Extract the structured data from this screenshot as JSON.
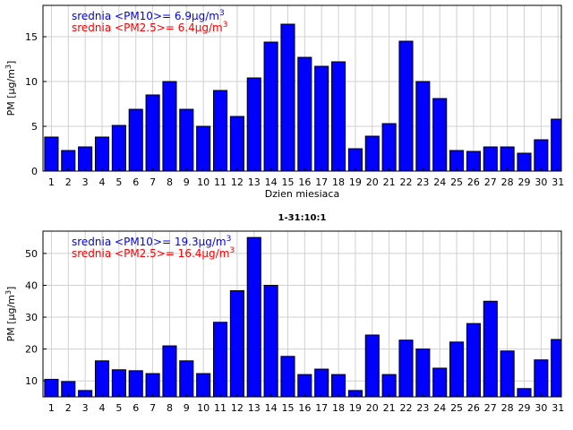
{
  "chart_data": [
    {
      "type": "bar",
      "title": "",
      "xlabel": "Dzien miesiaca",
      "ylabel": "PM [μg/m³]",
      "ylabel_base": "PM [μg/m",
      "ylabel_sup": "3",
      "ylabel_end": "]",
      "categories": [
        "1",
        "2",
        "3",
        "4",
        "5",
        "6",
        "7",
        "8",
        "9",
        "10",
        "11",
        "12",
        "13",
        "14",
        "15",
        "16",
        "17",
        "18",
        "19",
        "20",
        "21",
        "22",
        "23",
        "24",
        "25",
        "26",
        "27",
        "28",
        "29",
        "30",
        "31"
      ],
      "values": [
        3.8,
        2.3,
        2.7,
        3.8,
        5.1,
        6.9,
        8.5,
        10.0,
        6.9,
        5.0,
        9.0,
        6.1,
        10.4,
        14.4,
        16.4,
        12.7,
        11.7,
        12.2,
        2.5,
        3.9,
        5.3,
        14.5,
        10.0,
        8.1,
        2.3,
        2.2,
        2.7,
        2.7,
        2.0,
        3.5,
        5.8
      ],
      "xlim": [
        0.5,
        31.2
      ],
      "ylim": [
        0,
        18.5
      ],
      "yticks": [
        0,
        5,
        10,
        15
      ],
      "bar_color": "#0000ff",
      "annotations": [
        {
          "text": "srednia <PM10>= 6.9μg/m³",
          "base": "srednia <PM10>= 6.9μg/m",
          "sup": "3",
          "color": "#0000ff"
        },
        {
          "text": "srednia <PM2.5>= 6.4μg/m³",
          "base": "srednia <PM2.5>= 6.4μg/m",
          "sup": "3",
          "color": "#ff0000"
        }
      ]
    },
    {
      "type": "bar",
      "title": "1-31:10:1",
      "xlabel": "",
      "ylabel": "PM [μg/m³]",
      "ylabel_base": "PM [μg/m",
      "ylabel_sup": "3",
      "ylabel_end": "]",
      "categories": [
        "1",
        "2",
        "3",
        "4",
        "5",
        "6",
        "7",
        "8",
        "9",
        "10",
        "11",
        "12",
        "13",
        "14",
        "15",
        "16",
        "17",
        "18",
        "19",
        "20",
        "21",
        "22",
        "23",
        "24",
        "25",
        "26",
        "27",
        "28",
        "29",
        "30",
        "31"
      ],
      "values": [
        10.5,
        9.8,
        7.0,
        16.3,
        13.5,
        13.2,
        12.3,
        21.0,
        16.3,
        12.3,
        28.4,
        38.3,
        55.0,
        40.0,
        17.7,
        12.0,
        13.7,
        12.0,
        7.0,
        24.4,
        12.0,
        22.8,
        20.0,
        14.0,
        22.2,
        28.0,
        35.0,
        19.4,
        7.6,
        16.6,
        23.0
      ],
      "xlim": [
        0.5,
        31.2
      ],
      "ylim": [
        5,
        57
      ],
      "yticks": [
        10,
        20,
        30,
        40,
        50
      ],
      "bar_color": "#0000ff",
      "annotations": [
        {
          "text": "srednia <PM10>= 19.3μg/m³",
          "base": "srednia <PM10>= 19.3μg/m",
          "sup": "3",
          "color": "#0000ff"
        },
        {
          "text": "srednia <PM2.5>= 16.4μg/m³",
          "base": "srednia <PM2.5>= 16.4μg/m",
          "sup": "3",
          "color": "#ff0000"
        }
      ]
    }
  ]
}
